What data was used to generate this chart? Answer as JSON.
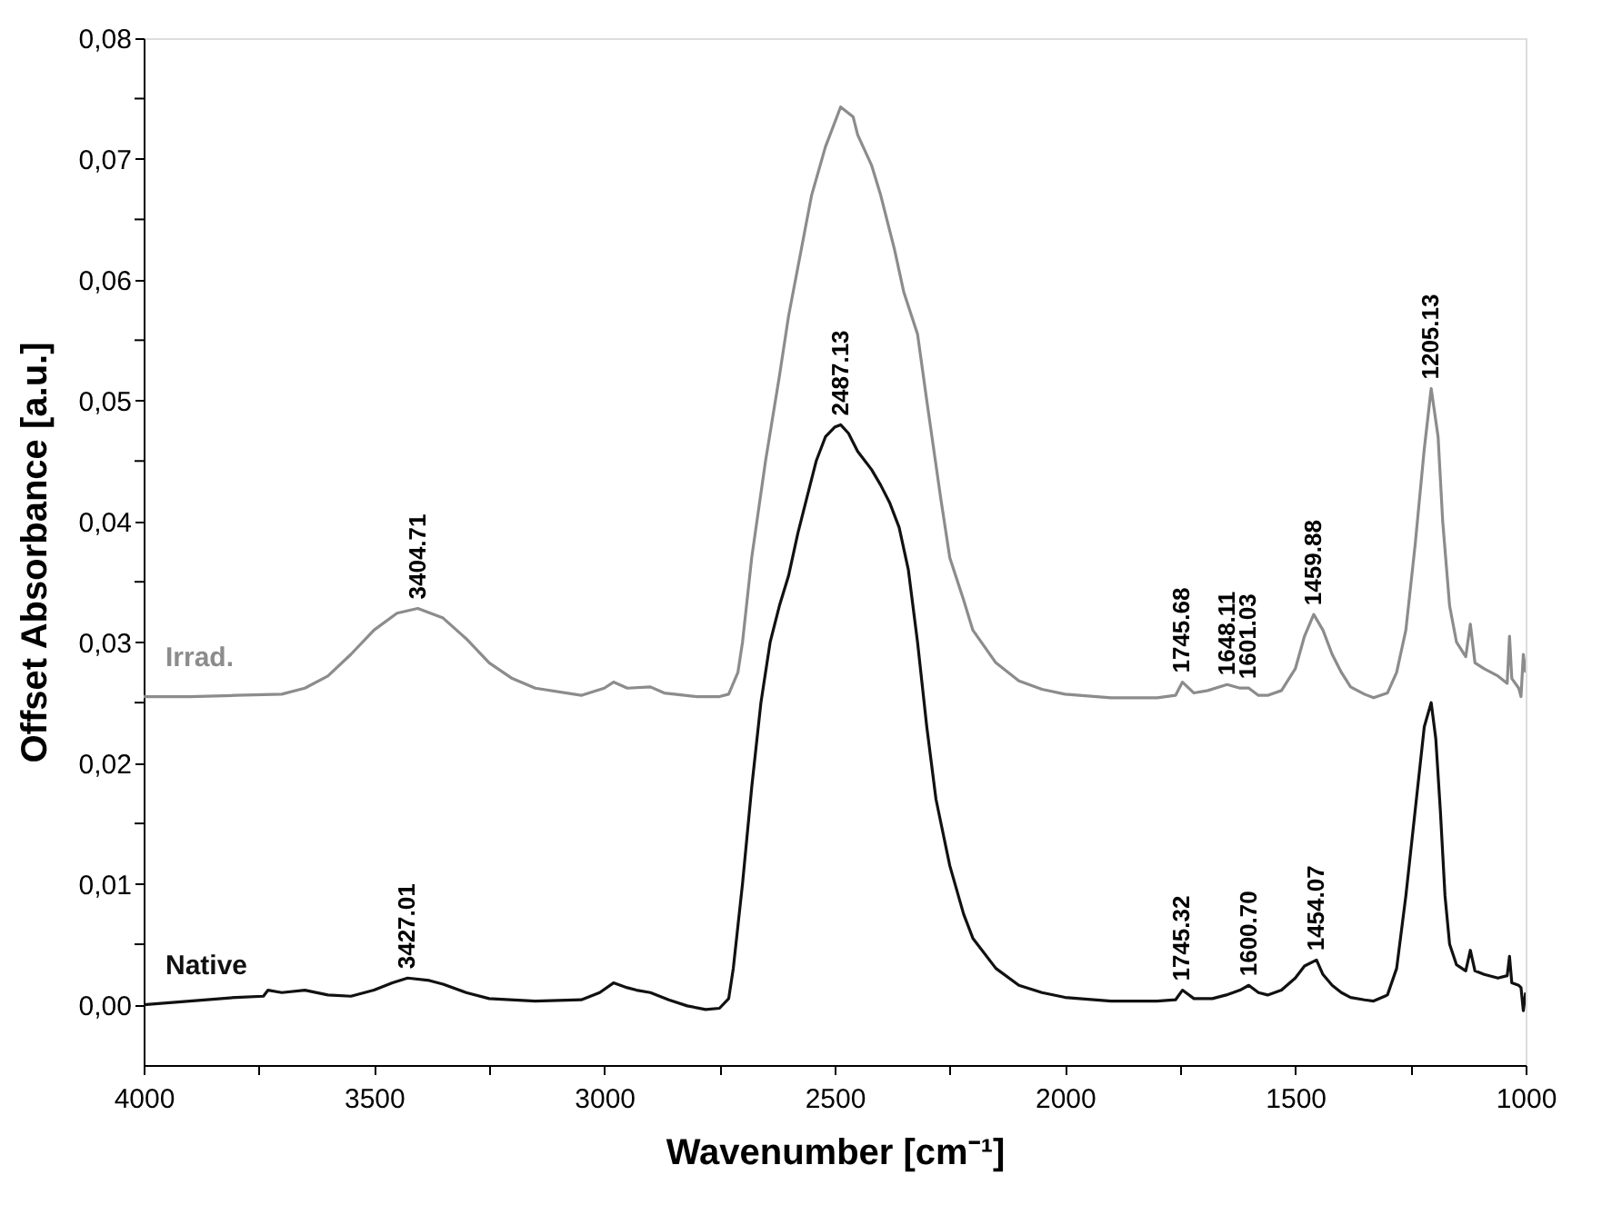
{
  "chart_data": {
    "type": "line",
    "xlabel": "Wavenumber [cm⁻¹]",
    "ylabel": "Offset Absorbance [a.u.]",
    "xlim": [
      4000,
      1000
    ],
    "xticks": [
      4000,
      {
        "value": 3750,
        "label": null
      },
      3500,
      {
        "value": 3250,
        "label": null
      },
      3000,
      {
        "value": 2750,
        "label": null
      },
      2500,
      {
        "value": 2250,
        "label": null
      },
      2000,
      {
        "value": 1750,
        "label": null
      },
      1500,
      {
        "value": 1250,
        "label": null
      },
      1000
    ],
    "ylim": [
      -0.005,
      0.08
    ],
    "yticks": [
      {
        "value": 0,
        "label": "0,00"
      },
      {
        "value": 0.005,
        "label": null
      },
      {
        "value": 0.01,
        "label": "0,01"
      },
      {
        "value": 0.015,
        "label": null
      },
      {
        "value": 0.02,
        "label": "0,02"
      },
      {
        "value": 0.025,
        "label": null
      },
      {
        "value": 0.03,
        "label": "0,03"
      },
      {
        "value": 0.035,
        "label": null
      },
      {
        "value": 0.04,
        "label": "0,04"
      },
      {
        "value": 0.045,
        "label": null
      },
      {
        "value": 0.05,
        "label": "0,05"
      },
      {
        "value": 0.055,
        "label": null
      },
      {
        "value": 0.06,
        "label": "0,06"
      },
      {
        "value": 0.065,
        "label": null
      },
      {
        "value": 0.07,
        "label": "0,07"
      },
      {
        "value": 0.075,
        "label": null
      },
      {
        "value": 0.08,
        "label": "0,08"
      }
    ],
    "grid": false,
    "legend": false,
    "marker": "none",
    "line_style": "solid",
    "series": [
      {
        "name": "Irrad.",
        "color": "#8c8c8c",
        "x": [
          4000,
          3900,
          3800,
          3700,
          3650,
          3600,
          3550,
          3500,
          3450,
          3405,
          3350,
          3300,
          3250,
          3200,
          3150,
          3050,
          3000,
          2980,
          2950,
          2900,
          2870,
          2800,
          2750,
          2730,
          2710,
          2700,
          2680,
          2650,
          2620,
          2600,
          2570,
          2550,
          2520,
          2487,
          2460,
          2450,
          2420,
          2400,
          2370,
          2350,
          2320,
          2300,
          2270,
          2250,
          2220,
          2200,
          2150,
          2100,
          2050,
          2000,
          1900,
          1800,
          1760,
          1745,
          1720,
          1690,
          1648,
          1620,
          1601,
          1580,
          1560,
          1530,
          1500,
          1480,
          1460,
          1440,
          1420,
          1400,
          1380,
          1350,
          1330,
          1300,
          1280,
          1260,
          1240,
          1220,
          1205,
          1190,
          1180,
          1165,
          1150,
          1130,
          1120,
          1110,
          1090,
          1060,
          1040,
          1035,
          1030,
          1015,
          1010,
          1005,
          1000
        ],
        "values": [
          0.0255,
          0.0255,
          0.0256,
          0.0257,
          0.0262,
          0.0272,
          0.029,
          0.031,
          0.0324,
          0.0328,
          0.032,
          0.0303,
          0.0283,
          0.027,
          0.0262,
          0.0256,
          0.0262,
          0.0267,
          0.0262,
          0.0263,
          0.0258,
          0.0255,
          0.0255,
          0.0257,
          0.0275,
          0.03,
          0.037,
          0.045,
          0.052,
          0.057,
          0.063,
          0.067,
          0.071,
          0.0743,
          0.0735,
          0.072,
          0.0695,
          0.067,
          0.0625,
          0.059,
          0.0555,
          0.05,
          0.042,
          0.037,
          0.0335,
          0.031,
          0.0283,
          0.0268,
          0.0261,
          0.0257,
          0.0254,
          0.0254,
          0.0256,
          0.0267,
          0.0258,
          0.026,
          0.0265,
          0.0262,
          0.0262,
          0.0256,
          0.0256,
          0.026,
          0.0278,
          0.0305,
          0.0323,
          0.031,
          0.029,
          0.0275,
          0.0263,
          0.0257,
          0.0254,
          0.0258,
          0.0275,
          0.031,
          0.038,
          0.046,
          0.051,
          0.047,
          0.04,
          0.033,
          0.03,
          0.0288,
          0.0315,
          0.0283,
          0.0278,
          0.0272,
          0.0266,
          0.0305,
          0.027,
          0.0262,
          0.0255,
          0.029,
          0.0275
        ]
      },
      {
        "name": "Native",
        "color": "#111111",
        "x": [
          4000,
          3900,
          3800,
          3740,
          3730,
          3700,
          3650,
          3600,
          3550,
          3500,
          3460,
          3427,
          3380,
          3350,
          3300,
          3250,
          3150,
          3050,
          3010,
          2980,
          2950,
          2930,
          2900,
          2860,
          2820,
          2780,
          2750,
          2730,
          2720,
          2700,
          2680,
          2660,
          2640,
          2620,
          2600,
          2580,
          2560,
          2540,
          2520,
          2500,
          2487,
          2470,
          2450,
          2420,
          2400,
          2380,
          2360,
          2340,
          2320,
          2300,
          2280,
          2250,
          2220,
          2200,
          2150,
          2100,
          2050,
          2000,
          1900,
          1800,
          1760,
          1745,
          1720,
          1680,
          1650,
          1620,
          1601,
          1580,
          1560,
          1530,
          1500,
          1480,
          1454,
          1440,
          1420,
          1400,
          1380,
          1350,
          1330,
          1300,
          1280,
          1260,
          1240,
          1220,
          1205,
          1195,
          1185,
          1175,
          1165,
          1150,
          1130,
          1120,
          1110,
          1090,
          1060,
          1040,
          1035,
          1030,
          1015,
          1010,
          1005,
          1000
        ],
        "values": [
          0.0,
          0.0003,
          0.0006,
          0.0007,
          0.0012,
          0.001,
          0.0012,
          0.0008,
          0.0007,
          0.0012,
          0.0018,
          0.0022,
          0.002,
          0.0017,
          0.001,
          0.0005,
          0.0003,
          0.0004,
          0.001,
          0.0018,
          0.0014,
          0.0012,
          0.001,
          0.0004,
          -0.0001,
          -0.0004,
          -0.0003,
          0.0005,
          0.003,
          0.01,
          0.018,
          0.025,
          0.03,
          0.033,
          0.0355,
          0.039,
          0.042,
          0.045,
          0.047,
          0.0478,
          0.048,
          0.0473,
          0.0458,
          0.0443,
          0.043,
          0.0415,
          0.0395,
          0.036,
          0.03,
          0.023,
          0.017,
          0.0115,
          0.0075,
          0.0055,
          0.003,
          0.0016,
          0.001,
          0.0006,
          0.0003,
          0.0003,
          0.0004,
          0.0012,
          0.0005,
          0.0005,
          0.0008,
          0.0012,
          0.0016,
          0.001,
          0.0008,
          0.0012,
          0.0022,
          0.0032,
          0.0037,
          0.0025,
          0.0016,
          0.001,
          0.0006,
          0.0004,
          0.0003,
          0.0008,
          0.003,
          0.009,
          0.016,
          0.023,
          0.025,
          0.022,
          0.016,
          0.009,
          0.005,
          0.0033,
          0.0028,
          0.0045,
          0.0028,
          0.0025,
          0.0022,
          0.0024,
          0.004,
          0.0018,
          0.0016,
          0.0014,
          -0.0005,
          0.001
        ]
      }
    ],
    "annotations": [
      {
        "text": "3404.71",
        "x": 3404.71,
        "y": 0.0328
      },
      {
        "text": "2487.13",
        "x": 2487.13,
        "y": 0.048
      },
      {
        "text": "1745.68",
        "x": 1745.68,
        "y": 0.0267
      },
      {
        "text": "1648.11",
        "x": 1648.11,
        "y": 0.0265
      },
      {
        "text": "1601.03",
        "x": 1601.03,
        "y": 0.0262
      },
      {
        "text": "1459.88",
        "x": 1459.88,
        "y": 0.0323
      },
      {
        "text": "1205.13",
        "x": 1205.13,
        "y": 0.051
      },
      {
        "text": "3427.01",
        "x": 3427.01,
        "y": 0.0022
      },
      {
        "text": "1745.32",
        "x": 1745.32,
        "y": 0.0012
      },
      {
        "text": "1600.70",
        "x": 1600.7,
        "y": 0.0016
      },
      {
        "text": "1454.07",
        "x": 1454.07,
        "y": 0.0037
      }
    ]
  }
}
